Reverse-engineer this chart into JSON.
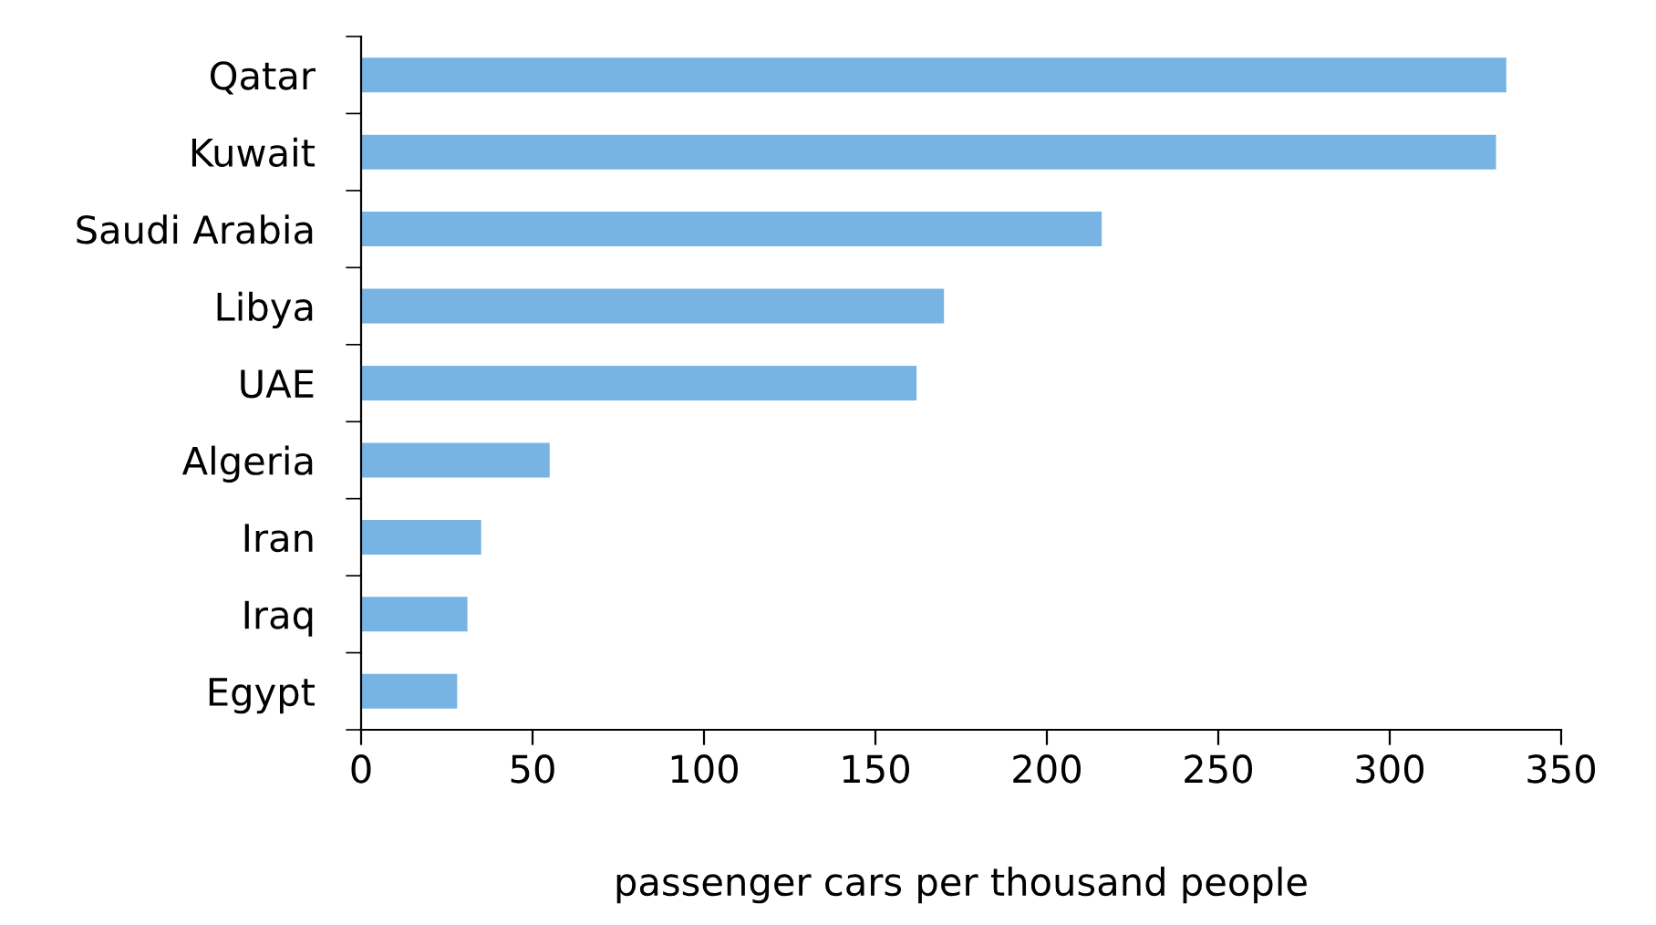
{
  "chart_data": {
    "type": "bar",
    "orientation": "horizontal",
    "xlabel": "passenger cars per thousand people",
    "categories": [
      "Qatar",
      "Kuwait",
      "Saudi Arabia",
      "Libya",
      "UAE",
      "Algeria",
      "Iran",
      "Iraq",
      "Egypt"
    ],
    "values": [
      334,
      331,
      216,
      170,
      162,
      55,
      35,
      31,
      28
    ],
    "color": "#77b4e3",
    "xlim": [
      0,
      350
    ],
    "xticks": [
      0,
      50,
      100,
      150,
      200,
      250,
      300,
      350
    ],
    "grid": false
  }
}
